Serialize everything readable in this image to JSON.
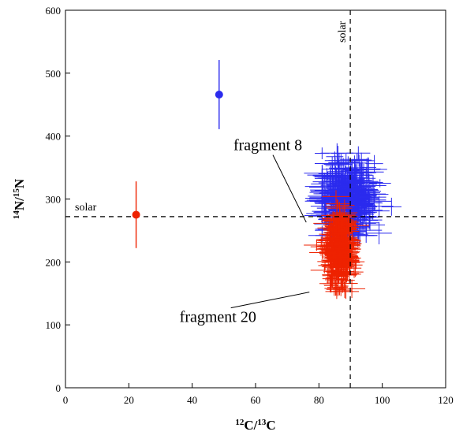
{
  "chart_data": {
    "type": "scatter",
    "title": "",
    "xlabel": {
      "sup": "12",
      "base": "C/",
      "sup2": "13",
      "base2": "C"
    },
    "ylabel": {
      "sup": "14",
      "base": "N/",
      "sup2": "15",
      "base2": "N"
    },
    "xlim": [
      0,
      120
    ],
    "ylim": [
      0,
      600
    ],
    "xticks": [
      0,
      20,
      40,
      60,
      80,
      100,
      120
    ],
    "yticks": [
      0,
      100,
      200,
      300,
      400,
      500,
      600
    ],
    "grid": false,
    "reference_lines": [
      {
        "orientation": "vertical",
        "value": 89.9,
        "label": "solar",
        "style": "dashed"
      },
      {
        "orientation": "horizontal",
        "value": 272,
        "label": "solar",
        "style": "dashed"
      }
    ],
    "series": [
      {
        "color": "#2b2bee",
        "marker": "crosshair-errorbars",
        "cluster": {
          "x_center": 88.5,
          "x_spread": 8,
          "y_center": 300,
          "y_spread": 38,
          "x_range": [
            77,
            108
          ],
          "y_range": [
            230,
            385
          ],
          "n_points": 420,
          "xerr_typical": 4,
          "yerr_typical": 12
        },
        "annotation": {
          "text": "fragment 8",
          "x": 58,
          "y": 380,
          "arrow_to": [
            76,
            263
          ]
        }
      },
      {
        "color": "#ee2200",
        "marker": "crosshair-errorbars",
        "cluster": {
          "x_center": 86.5,
          "x_spread": 3.5,
          "y_center": 222,
          "y_spread": 35,
          "x_range": [
            73,
            102
          ],
          "y_range": [
            143,
            350
          ],
          "n_points": 420,
          "xerr_typical": 3,
          "yerr_typical": 10
        },
        "annotation": {
          "text": "fragment 20",
          "x": 41,
          "y": 107,
          "arrow_to": [
            77,
            152
          ]
        }
      }
    ],
    "highlighted_points": [
      {
        "x": 48.5,
        "y": 466,
        "yerr_low": 411,
        "yerr_high": 521,
        "color": "#2b2bee"
      },
      {
        "x": 22.3,
        "y": 275,
        "yerr_low": 222,
        "yerr_high": 328,
        "color": "#ee2200"
      }
    ]
  }
}
